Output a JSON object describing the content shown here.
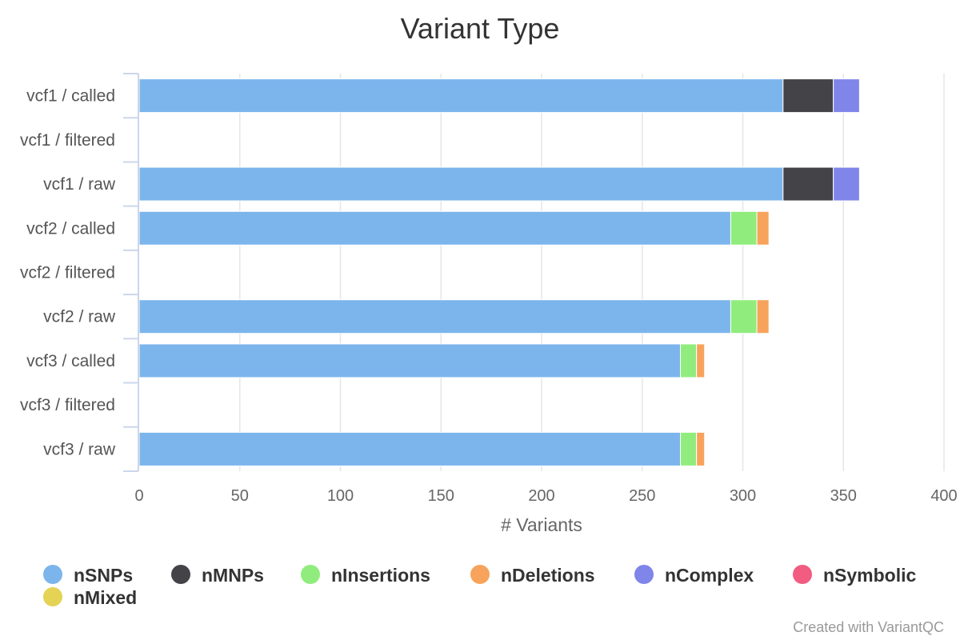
{
  "chart_data": {
    "type": "bar",
    "orientation": "horizontal",
    "stacked": true,
    "title": "Variant Type",
    "xlabel": "# Variants",
    "ylabel": "",
    "xlim": [
      0,
      400
    ],
    "x_ticks": [
      0,
      50,
      100,
      150,
      200,
      250,
      300,
      350,
      400
    ],
    "grid": true,
    "legend_position": "bottom",
    "categories": [
      "vcf1 / called",
      "vcf1 / filtered",
      "vcf1 / raw",
      "vcf2 / called",
      "vcf2 / filtered",
      "vcf2 / raw",
      "vcf3 / called",
      "vcf3 / filtered",
      "vcf3 / raw"
    ],
    "series": [
      {
        "name": "nSNPs",
        "color": "#7cb5ec",
        "values": [
          320,
          0,
          320,
          294,
          0,
          294,
          269,
          0,
          269
        ]
      },
      {
        "name": "nMNPs",
        "color": "#434348",
        "values": [
          25,
          0,
          25,
          0,
          0,
          0,
          0,
          0,
          0
        ]
      },
      {
        "name": "nInsertions",
        "color": "#90ed7d",
        "values": [
          0,
          0,
          0,
          13,
          0,
          13,
          8,
          0,
          8
        ]
      },
      {
        "name": "nDeletions",
        "color": "#f7a35c",
        "values": [
          0,
          0,
          0,
          6,
          0,
          6,
          4,
          0,
          4
        ]
      },
      {
        "name": "nComplex",
        "color": "#8085e9",
        "values": [
          13,
          0,
          13,
          0,
          0,
          0,
          0,
          0,
          0
        ]
      },
      {
        "name": "nSymbolic",
        "color": "#f15c80",
        "values": [
          0,
          0,
          0,
          0,
          0,
          0,
          0,
          0,
          0
        ]
      },
      {
        "name": "nMixed",
        "color": "#e4d354",
        "values": [
          0,
          0,
          0,
          0,
          0,
          0,
          0,
          0,
          0
        ]
      }
    ]
  },
  "credit": "Created with VariantQC"
}
